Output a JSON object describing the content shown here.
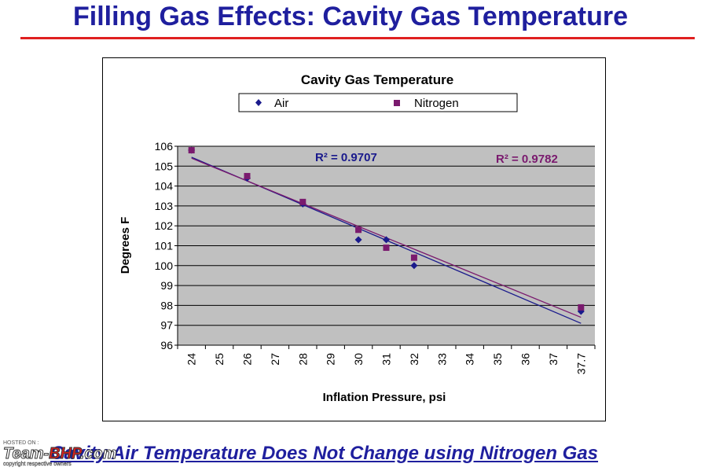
{
  "slide": {
    "title": "Filling Gas Effects: Cavity Gas Temperature",
    "footer": "Cavity Air Temperature Does Not Change using Nitrogen Gas",
    "watermark": {
      "hosted": "HOSTED ON :",
      "logo_team": "Team-",
      "logo_bhp": "BHP",
      "logo_com": ".com",
      "copyright": "copyright respective owners"
    }
  },
  "colors": {
    "title": "#1f1f9e",
    "rule": "#e02020",
    "air": "#1a1a8c",
    "nitrogen": "#7a1a6e",
    "plot_bg": "#c0c0c0"
  },
  "chart_data": {
    "type": "scatter",
    "title": "Cavity Gas Temperature",
    "xlabel": "Inflation Pressure, psi",
    "ylabel": "Degrees F",
    "categories": [
      "24",
      "25",
      "26",
      "27",
      "28",
      "29",
      "30",
      "31",
      "32",
      "33",
      "34",
      "35",
      "36",
      "37",
      "37.7"
    ],
    "ylim": [
      96,
      106
    ],
    "yticks": [
      96,
      97,
      98,
      99,
      100,
      101,
      102,
      103,
      104,
      105,
      106
    ],
    "grid": "horizontal",
    "legend_position": "top",
    "series": [
      {
        "name": "Air",
        "marker": "diamond",
        "color": "#1a1a8c",
        "points": [
          {
            "x": "24",
            "y": 105.8
          },
          {
            "x": "26",
            "y": 104.4
          },
          {
            "x": "28",
            "y": 103.1
          },
          {
            "x": "30",
            "y": 101.3
          },
          {
            "x": "31",
            "y": 101.3
          },
          {
            "x": "32",
            "y": 100.0
          },
          {
            "x": "37.7",
            "y": 97.7
          }
        ],
        "trendline": {
          "from": {
            "x": "24",
            "y": 105.45
          },
          "to": {
            "x": "37.7",
            "y": 97.1
          }
        },
        "r2_label": "R² = 0.9707"
      },
      {
        "name": "Nitrogen",
        "marker": "square",
        "color": "#7a1a6e",
        "points": [
          {
            "x": "24",
            "y": 105.8
          },
          {
            "x": "26",
            "y": 104.5
          },
          {
            "x": "28",
            "y": 103.2
          },
          {
            "x": "30",
            "y": 101.8
          },
          {
            "x": "31",
            "y": 100.9
          },
          {
            "x": "32",
            "y": 100.4
          },
          {
            "x": "37.7",
            "y": 97.9
          }
        ],
        "trendline": {
          "from": {
            "x": "24",
            "y": 105.4
          },
          "to": {
            "x": "37.7",
            "y": 97.4
          }
        },
        "r2_label": "R² = 0.9782"
      }
    ]
  }
}
